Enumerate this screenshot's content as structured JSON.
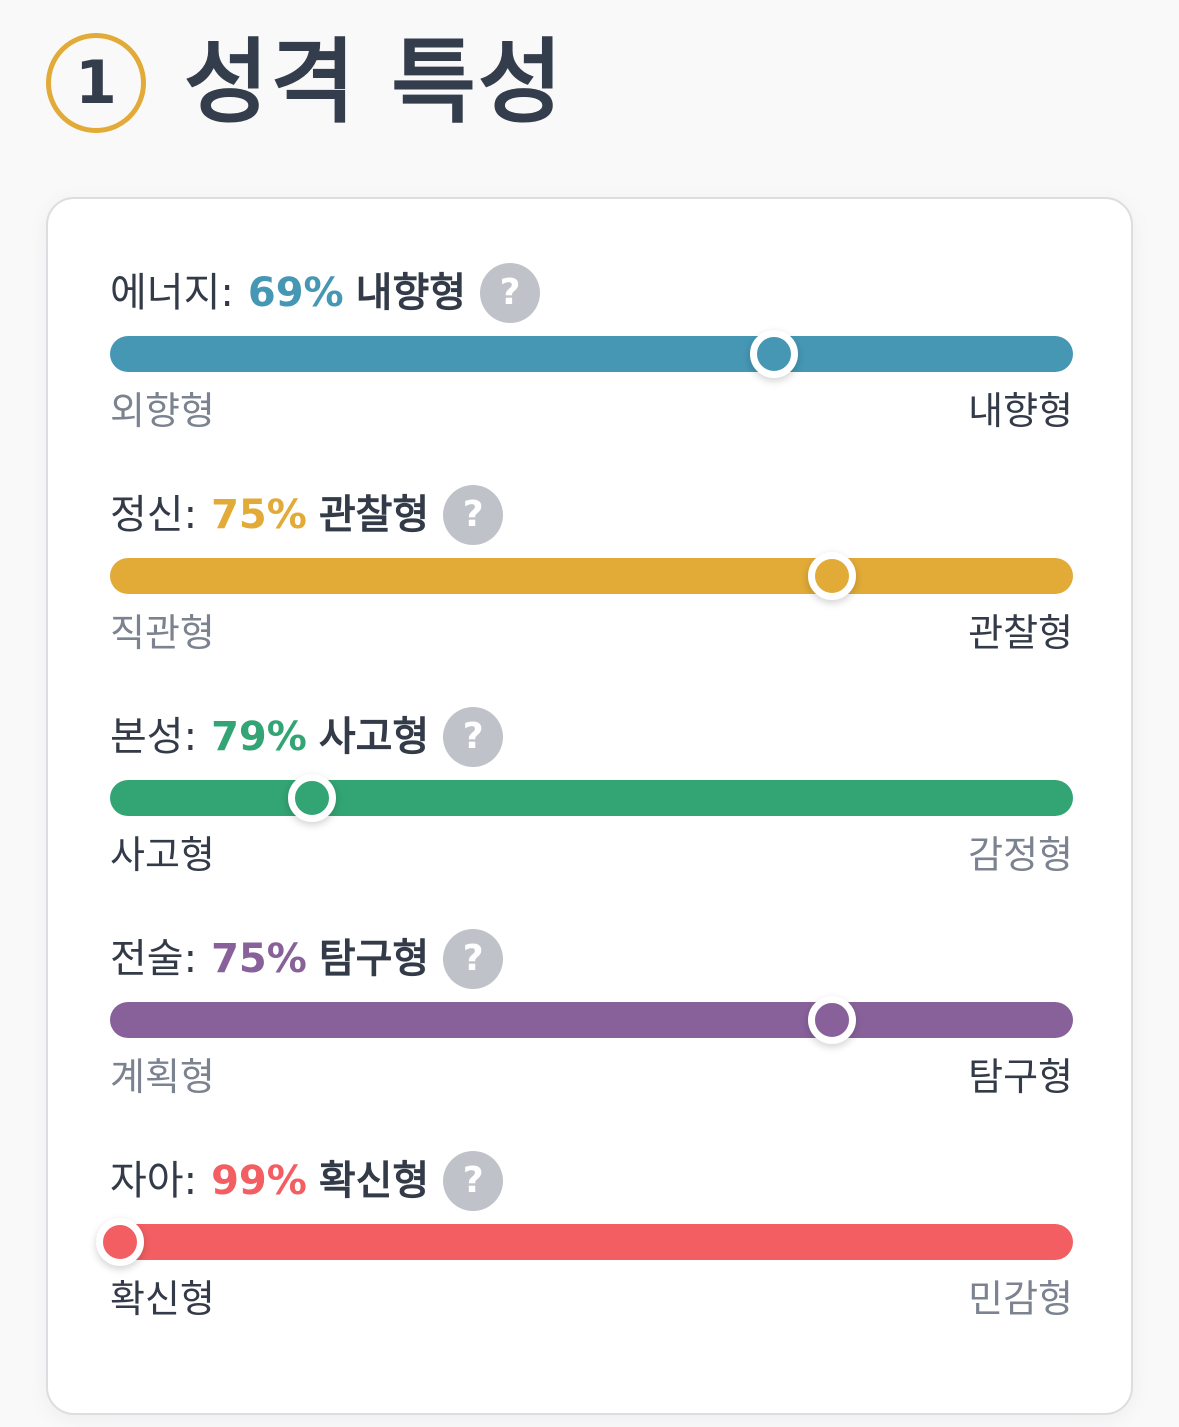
{
  "header": {
    "step_number": "1",
    "title": "성격 특성"
  },
  "traits": [
    {
      "name": "에너지:",
      "percent": "69%",
      "result": "내향형",
      "left_label": "외향형",
      "right_label": "내향형",
      "position": 0.69,
      "active_side": "right",
      "color": "#4597b4"
    },
    {
      "name": "정신:",
      "percent": "75%",
      "result": "관찰형",
      "left_label": "직관형",
      "right_label": "관찰형",
      "position": 0.75,
      "active_side": "right",
      "color": "#e2aa37"
    },
    {
      "name": "본성:",
      "percent": "79%",
      "result": "사고형",
      "left_label": "사고형",
      "right_label": "감정형",
      "position": 0.21,
      "active_side": "left",
      "color": "#33a474"
    },
    {
      "name": "전술:",
      "percent": "75%",
      "result": "탐구형",
      "left_label": "계획형",
      "right_label": "탐구형",
      "position": 0.75,
      "active_side": "right",
      "color": "#88619a"
    },
    {
      "name": "자아:",
      "percent": "99%",
      "result": "확신형",
      "left_label": "확신형",
      "right_label": "민감형",
      "position": 0.01,
      "active_side": "left",
      "color": "#f25e62"
    }
  ],
  "help_icon": "question-mark-icon",
  "help_glyph": "?"
}
